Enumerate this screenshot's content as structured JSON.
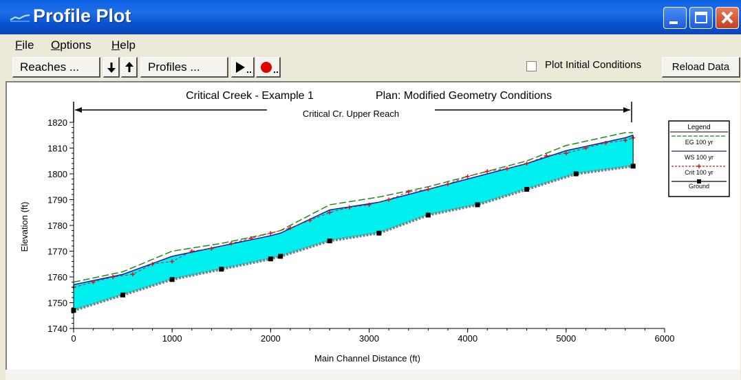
{
  "window": {
    "title": "Profile Plot"
  },
  "menu": {
    "file": "File",
    "options": "Options",
    "help": "Help"
  },
  "toolbar": {
    "reaches_label": "Reaches ...",
    "profiles_label": "Profiles ...",
    "plot_initial_label": "Plot Initial Conditions",
    "plot_initial_checked": false,
    "reload_label": "Reload Data"
  },
  "colors": {
    "water_fill": "#00f0f0",
    "eg_line": "#1a8a1a",
    "ws_line": "#1a1aa8",
    "crit_line": "#d01818",
    "ground_line": "#808080",
    "titlebar": "#0a5fe0"
  },
  "chart_data": {
    "type": "line",
    "title": "Critical Creek - Example 1",
    "plan_title": "Plan: Modified Geometry Conditions",
    "reach_label": "Critical Cr. Upper Reach",
    "xlabel": "Main Channel Distance (ft)",
    "ylabel": "Elevation (ft)",
    "xlim": [
      0,
      6000
    ],
    "ylim": [
      1740,
      1820
    ],
    "x_ticks": [
      0,
      1000,
      2000,
      3000,
      4000,
      5000,
      6000
    ],
    "y_ticks": [
      1740,
      1750,
      1760,
      1770,
      1780,
      1790,
      1800,
      1810,
      1820
    ],
    "legend_title": "Legend",
    "legend_position": "right",
    "series": [
      {
        "name": "EG 100 yr",
        "x": [
          0,
          500,
          1000,
          1500,
          2000,
          2100,
          2600,
          3100,
          3600,
          4100,
          4600,
          5000,
          5600,
          5680
        ],
        "values": [
          1758,
          1762,
          1770,
          1773,
          1777,
          1778,
          1788,
          1791,
          1795,
          1800,
          1805,
          1811,
          1816,
          1816
        ]
      },
      {
        "name": "WS 100 yr",
        "x": [
          0,
          500,
          1000,
          1500,
          2000,
          2100,
          2600,
          3100,
          3600,
          4100,
          4600,
          5000,
          5600,
          5680
        ],
        "values": [
          1757,
          1761,
          1768,
          1772,
          1776,
          1777,
          1786,
          1789,
          1794,
          1799,
          1804,
          1809,
          1814,
          1815
        ]
      },
      {
        "name": "Crit 100 yr",
        "x": [
          0,
          200,
          400,
          600,
          800,
          1000,
          1200,
          1400,
          1600,
          1800,
          2000,
          2200,
          2400,
          2600,
          2800,
          3000,
          3200,
          3400,
          3600,
          3800,
          4000,
          4200,
          4400,
          4600,
          4800,
          5000,
          5200,
          5400,
          5600,
          5680
        ],
        "values": [
          1756,
          1758,
          1760,
          1761,
          1765,
          1766,
          1770,
          1771,
          1773,
          1775,
          1777,
          1779,
          1782,
          1785,
          1787,
          1788,
          1790,
          1793,
          1794,
          1796,
          1799,
          1801,
          1802,
          1804,
          1807,
          1808,
          1810,
          1812,
          1813,
          1814
        ]
      },
      {
        "name": "Ground",
        "x": [
          0,
          500,
          1000,
          1500,
          2000,
          2100,
          2600,
          3100,
          3600,
          4100,
          4600,
          5100,
          5680
        ],
        "values": [
          1747,
          1753,
          1759,
          1763,
          1767,
          1768,
          1774,
          1777,
          1784,
          1788,
          1794,
          1800,
          1803
        ]
      }
    ]
  }
}
